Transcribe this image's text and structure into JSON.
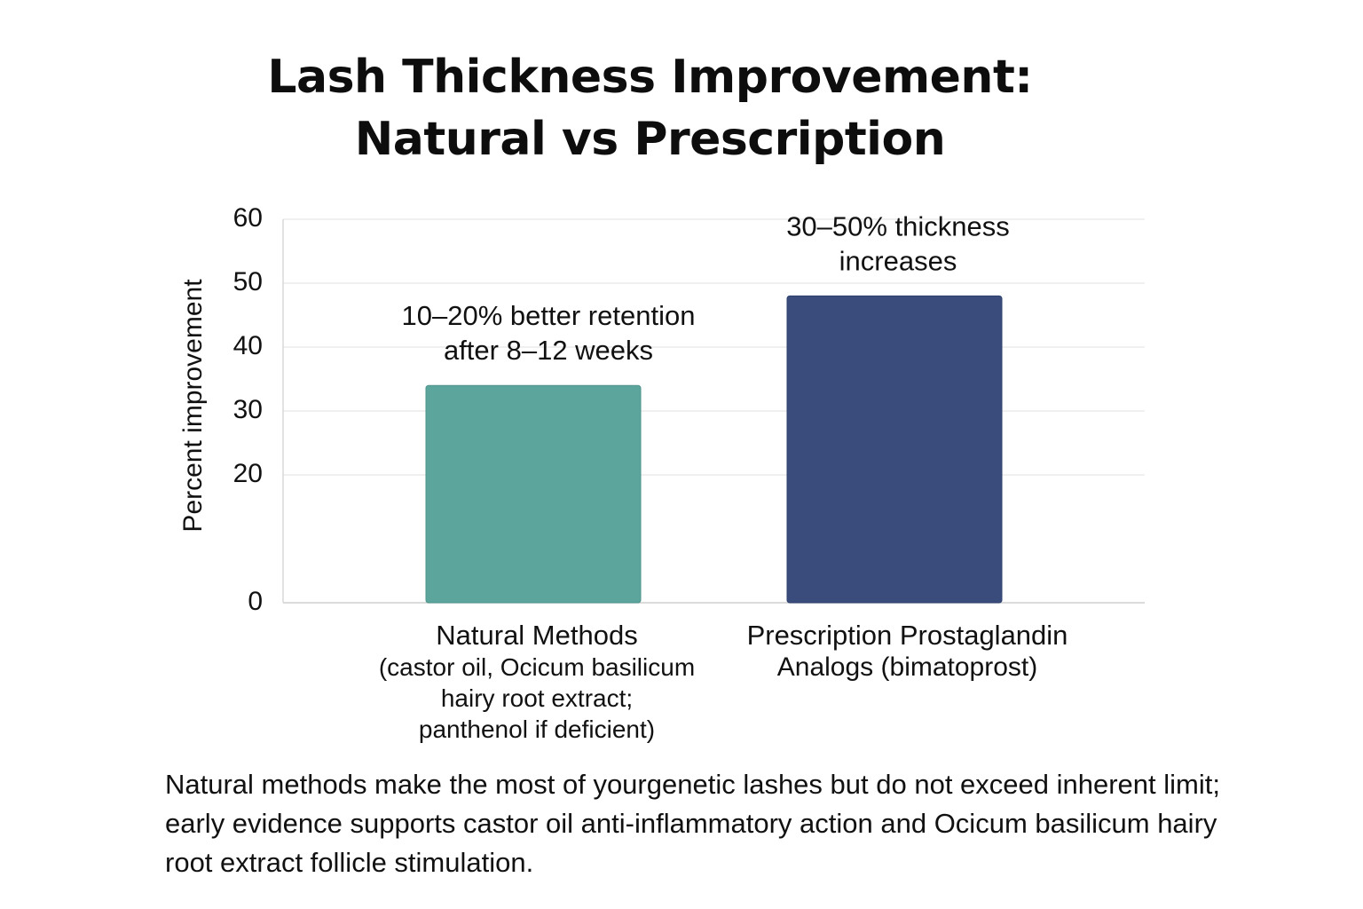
{
  "chart_data": {
    "type": "bar",
    "title_lines": [
      "Lash Thickness Improvement:",
      "Natural vs Prescription"
    ],
    "ylabel": "Percent improvement",
    "xlabel": "",
    "ylim": [
      0,
      60
    ],
    "yticks": [
      0,
      20,
      30,
      40,
      50,
      60
    ],
    "grid": true,
    "categories": [
      {
        "label": "Natural Methods",
        "sublabel_lines": [
          "(castor oil, Ocicum basilicum",
          "hairy root extract;",
          "panthenol if deficient)"
        ]
      },
      {
        "label": "Prescription Prostaglandin",
        "sublabel_lines": [
          "Analogs (bimatoprost)"
        ]
      }
    ],
    "values": [
      34,
      48
    ],
    "colors": [
      "#5ba59c",
      "#3a4c7c"
    ],
    "annotations": [
      [
        "10–20% better retention",
        "after 8–12 weeks"
      ],
      [
        "30–50% thickness",
        "increases"
      ]
    ]
  },
  "footnote": "Natural methods make the most of yourgenetic lashes but do not exceed inherent limit; early evidence supports castor oil anti-inflammatory action and Ocicum basilicum hairy root extract follicle stimulation."
}
